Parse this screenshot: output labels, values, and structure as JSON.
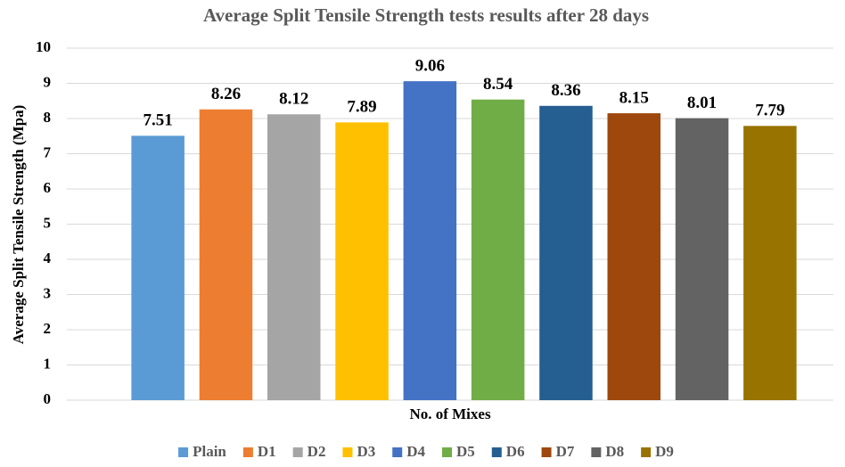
{
  "chart_data": {
    "type": "bar",
    "title": "Average Split Tensile Strength tests results after 28 days",
    "x_label": "No. of Mixes",
    "y_label": "Average Split Tensile Strength (Mpa)",
    "categories": [
      "Plain",
      "D1",
      "D2",
      "D3",
      "D4",
      "D5",
      "D6",
      "D7",
      "D8",
      "D9"
    ],
    "values": [
      7.51,
      8.26,
      8.12,
      7.89,
      9.06,
      8.54,
      8.36,
      8.15,
      8.01,
      7.79
    ],
    "colors": [
      "#5b9bd5",
      "#ed7d31",
      "#a5a5a5",
      "#ffc000",
      "#4472c4",
      "#70ad47",
      "#255e91",
      "#9e480e",
      "#636363",
      "#997300"
    ],
    "ylim": [
      0,
      10
    ],
    "yticks": [
      0,
      1,
      2,
      3,
      4,
      5,
      6,
      7,
      8,
      9,
      10
    ],
    "grid": true,
    "legend": "bottom"
  }
}
